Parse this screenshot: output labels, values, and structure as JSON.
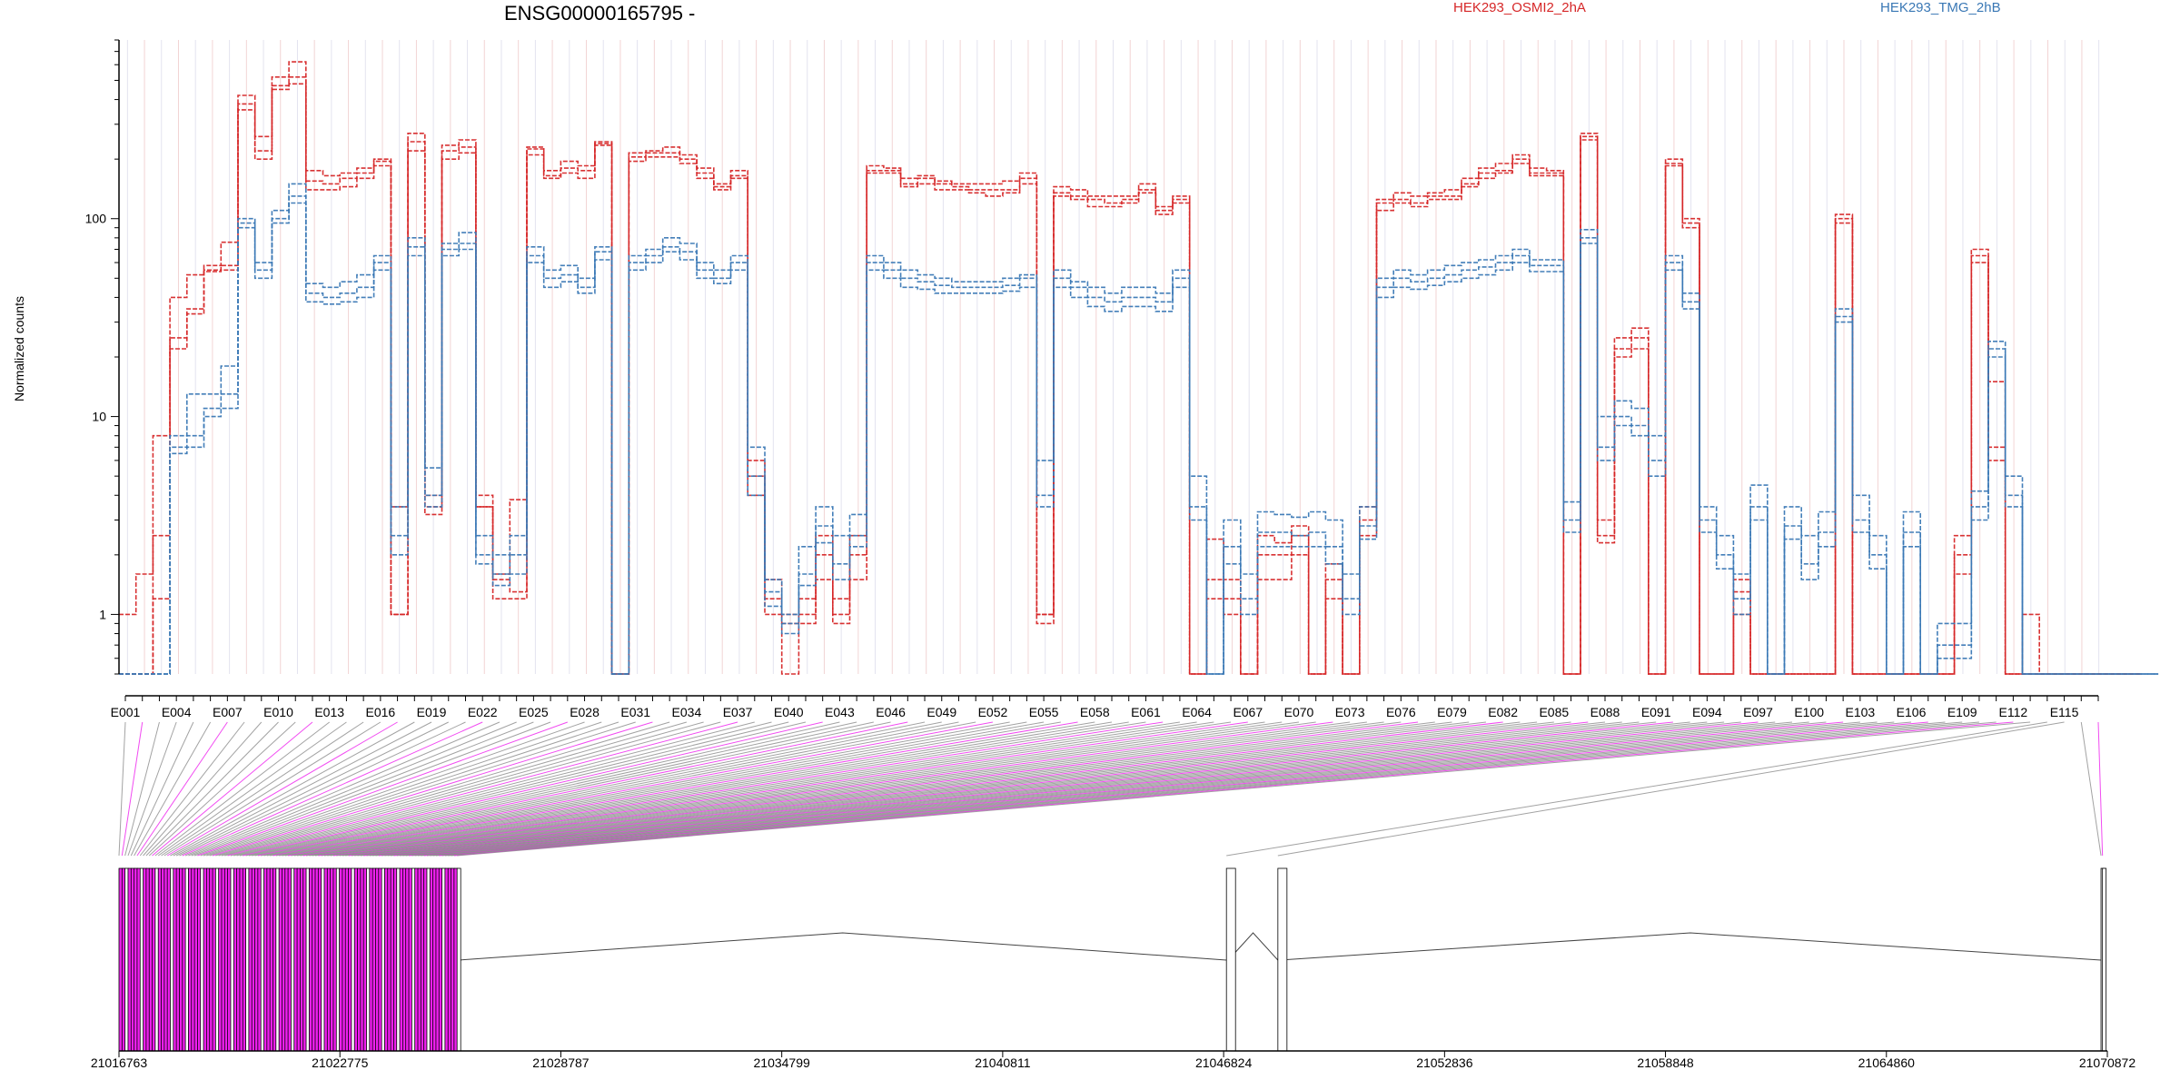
{
  "chart_data": {
    "type": "line",
    "title": "ENSG00000165795 -",
    "ylabel": "Normalized counts",
    "yscale": "log",
    "ylim": [
      0.5,
      800
    ],
    "y_ticks": [
      "1",
      "10",
      "100"
    ],
    "y_tick_values": [
      1,
      10,
      100
    ],
    "exon_count": 117,
    "exon_tick_labels": [
      "E001",
      "E004",
      "E007",
      "E010",
      "E013",
      "E016",
      "E019",
      "E022",
      "E025",
      "E028",
      "E031",
      "E034",
      "E037",
      "E040",
      "E043",
      "E046",
      "E049",
      "E052",
      "E055",
      "E058",
      "E061",
      "E064",
      "E067",
      "E070",
      "E073",
      "E076",
      "E079",
      "E082",
      "E085",
      "E088",
      "E091",
      "E094",
      "E097",
      "E100",
      "E103",
      "E106",
      "E109",
      "E112",
      "E115"
    ],
    "genome_ticks": [
      "21016763",
      "21022775",
      "21028787",
      "21034799",
      "21040811",
      "21046824",
      "21052836",
      "21058848",
      "21064860",
      "21070872"
    ],
    "genome_range": [
      21016763,
      21070872
    ],
    "legend": [
      "HEK293_OSMI2_2hA",
      "HEK293_TMG_2hB"
    ],
    "colors": {
      "HEK293_OSMI2_2hA": "#d62728",
      "HEK293_TMG_2hB": "#3a78b5",
      "highlight": "#ee1fee",
      "connector": "#8c8c8c"
    },
    "series": [
      {
        "name": "HEK293_OSMI2_2hA",
        "group": "HEK293_OSMI2_2hA",
        "profile": [
          1,
          1.6,
          8,
          40,
          52,
          55,
          58,
          420,
          260,
          520,
          620,
          175,
          165,
          170,
          180,
          200,
          3.5,
          270,
          4,
          235,
          250,
          4,
          1.6,
          3.8,
          230,
          175,
          195,
          185,
          245,
          0.5,
          215,
          220,
          230,
          210,
          180,
          150,
          175,
          4,
          1.5,
          0.5,
          1.2,
          2.5,
          1.2,
          2.5,
          185,
          180,
          160,
          165,
          155,
          150,
          150,
          150,
          155,
          170,
          1,
          145,
          140,
          130,
          130,
          130,
          150,
          115,
          130,
          0.5,
          2.4,
          1.5,
          0.5,
          2.5,
          2.3,
          2.8,
          0.5,
          1.8,
          0.5,
          3.5,
          125,
          135,
          130,
          135,
          140,
          160,
          180,
          190,
          210,
          180,
          175,
          0.5,
          270,
          3,
          25,
          28,
          0.5,
          200,
          100,
          0.5,
          0.5,
          1.5,
          0.5,
          0.5,
          0.5,
          0.5,
          0.5,
          105,
          0.5,
          0.5,
          0.5,
          0.5,
          0.5,
          0.5,
          2.5,
          70,
          15,
          0.5,
          1,
          0.5,
          0.5,
          0.5,
          0.5,
          0.5,
          0.5
        ]
      },
      {
        "name": "HEK293_OSMI2_2hA",
        "group": "HEK293_OSMI2_2hA",
        "profile": [
          0.5,
          0.5,
          2.5,
          25,
          35,
          58,
          76,
          380,
          200,
          470,
          520,
          155,
          150,
          160,
          170,
          195,
          1,
          245,
          3.5,
          220,
          230,
          3.5,
          1.5,
          1.3,
          225,
          160,
          180,
          175,
          240,
          0.5,
          205,
          215,
          215,
          200,
          170,
          140,
          165,
          5,
          1.2,
          1,
          1,
          2,
          1,
          2,
          175,
          175,
          150,
          160,
          150,
          145,
          140,
          140,
          140,
          160,
          1,
          135,
          130,
          125,
          120,
          125,
          140,
          110,
          125,
          0.5,
          1.5,
          1.2,
          0.5,
          2,
          2,
          2.5,
          0.5,
          1.5,
          0.5,
          3,
          120,
          125,
          120,
          130,
          130,
          150,
          170,
          175,
          200,
          170,
          170,
          0.5,
          260,
          2.5,
          22,
          25,
          0.5,
          190,
          95,
          0.5,
          0.5,
          1.3,
          0.5,
          0.5,
          0.5,
          0.5,
          0.5,
          100,
          0.5,
          0.5,
          0.5,
          0.5,
          0.5,
          0.5,
          2,
          65,
          7,
          0.5,
          0.5,
          0.5,
          0.5,
          0.5,
          0.5,
          0.5,
          0.5
        ]
      },
      {
        "name": "HEK293_OSMI2_2hA",
        "group": "HEK293_OSMI2_2hA",
        "profile": [
          0.5,
          0.5,
          1.2,
          22,
          33,
          54,
          55,
          355,
          220,
          450,
          480,
          140,
          140,
          145,
          160,
          185,
          1,
          220,
          3.2,
          200,
          215,
          3.5,
          1.2,
          1.2,
          210,
          165,
          170,
          160,
          235,
          0.5,
          195,
          205,
          205,
          190,
          160,
          145,
          160,
          6,
          1,
          0.9,
          0.9,
          1.5,
          0.9,
          1.5,
          170,
          170,
          145,
          150,
          140,
          140,
          135,
          130,
          135,
          150,
          0.9,
          130,
          125,
          115,
          115,
          120,
          135,
          105,
          120,
          0.5,
          1.2,
          1,
          0.5,
          1.5,
          1.5,
          2,
          0.5,
          1.2,
          0.5,
          2.5,
          110,
          120,
          115,
          125,
          125,
          145,
          160,
          170,
          190,
          165,
          165,
          0.5,
          250,
          2.3,
          20,
          22,
          0.5,
          185,
          90,
          0.5,
          0.5,
          1,
          0.5,
          0.5,
          0.5,
          0.5,
          0.5,
          95,
          0.5,
          0.5,
          0.5,
          0.5,
          0.5,
          0.5,
          1.6,
          60,
          6,
          0.5,
          0.5,
          0.5,
          0.5,
          0.5,
          0.5,
          0.5,
          0.5
        ]
      },
      {
        "name": "HEK293_TMG_2hB",
        "group": "HEK293_TMG_2hB",
        "profile": [
          0.5,
          0.5,
          0.5,
          8,
          13,
          13,
          18,
          100,
          60,
          110,
          150,
          47,
          45,
          48,
          52,
          65,
          3.5,
          80,
          5.5,
          75,
          85,
          2.5,
          2,
          2.5,
          72,
          55,
          58,
          50,
          72,
          0.5,
          65,
          70,
          80,
          75,
          60,
          55,
          65,
          7,
          1.5,
          1,
          2.2,
          3.5,
          2.5,
          3.2,
          65,
          60,
          55,
          52,
          50,
          48,
          48,
          48,
          50,
          52,
          6,
          55,
          48,
          45,
          42,
          45,
          45,
          42,
          55,
          5,
          0.5,
          3,
          1.6,
          3.3,
          3.2,
          3.1,
          3.3,
          3,
          1.6,
          3.5,
          50,
          55,
          52,
          55,
          58,
          60,
          62,
          65,
          70,
          62,
          62,
          3.7,
          88,
          10,
          12,
          11,
          8,
          65,
          42,
          3.5,
          2.5,
          1.6,
          4.5,
          0.5,
          3.5,
          2.5,
          3.3,
          35,
          4,
          2.5,
          0.5,
          3.3,
          0.5,
          0.9,
          0.9,
          4.2,
          24,
          5,
          0.5,
          0.5,
          0.5,
          0.5,
          0.5,
          0.5,
          0.5,
          0.5
        ]
      },
      {
        "name": "HEK293_TMG_2hB",
        "group": "HEK293_TMG_2hB",
        "profile": [
          0.5,
          0.5,
          0.5,
          7,
          8,
          11,
          13,
          95,
          55,
          100,
          130,
          42,
          40,
          42,
          45,
          60,
          2.5,
          72,
          4,
          70,
          75,
          2,
          1.6,
          2,
          65,
          50,
          52,
          45,
          68,
          0.5,
          60,
          65,
          72,
          68,
          55,
          50,
          60,
          5,
          1.3,
          0.9,
          1.6,
          2.8,
          1.8,
          2.5,
          60,
          55,
          50,
          48,
          46,
          45,
          45,
          45,
          46,
          50,
          4,
          50,
          45,
          40,
          38,
          40,
          40,
          38,
          50,
          3.5,
          0.5,
          2.2,
          1.2,
          2.6,
          2.6,
          2.5,
          2.6,
          2.2,
          1.2,
          2.8,
          45,
          50,
          48,
          50,
          52,
          55,
          57,
          60,
          65,
          58,
          58,
          3,
          80,
          7,
          10,
          9,
          6,
          60,
          38,
          3,
          2,
          1.2,
          3.5,
          0.5,
          2.8,
          1.8,
          2.6,
          32,
          3,
          2,
          0.5,
          2.6,
          0.5,
          0.7,
          0.7,
          3.5,
          22,
          4,
          0.5,
          0.5,
          0.5,
          0.5,
          0.5,
          0.5,
          0.5,
          0.5
        ]
      },
      {
        "name": "HEK293_TMG_2hB",
        "group": "HEK293_TMG_2hB",
        "profile": [
          0.5,
          0.5,
          0.5,
          6.5,
          7,
          10,
          11,
          90,
          50,
          95,
          120,
          38,
          37,
          38,
          40,
          55,
          2,
          65,
          3.5,
          65,
          70,
          1.8,
          1.4,
          1.6,
          60,
          45,
          48,
          42,
          62,
          0.5,
          55,
          60,
          68,
          62,
          50,
          47,
          55,
          4,
          1.1,
          0.8,
          1.4,
          2.3,
          1.5,
          2.2,
          55,
          50,
          45,
          44,
          42,
          42,
          42,
          42,
          43,
          45,
          3.5,
          45,
          40,
          36,
          34,
          36,
          36,
          34,
          45,
          3,
          0.5,
          1.8,
          1,
          2.2,
          2.2,
          2.2,
          2.2,
          1.8,
          1,
          2.4,
          40,
          45,
          44,
          46,
          48,
          50,
          52,
          55,
          60,
          54,
          54,
          2.6,
          75,
          6,
          9,
          8,
          5,
          55,
          35,
          2.6,
          1.7,
          1,
          3,
          0.5,
          2.4,
          1.5,
          2.2,
          30,
          2.6,
          1.7,
          0.5,
          2.2,
          0.5,
          0.6,
          0.6,
          3,
          20,
          3.5,
          0.5,
          0.5,
          0.5,
          0.5,
          0.5,
          0.5,
          0.5,
          0.5
        ]
      }
    ]
  }
}
